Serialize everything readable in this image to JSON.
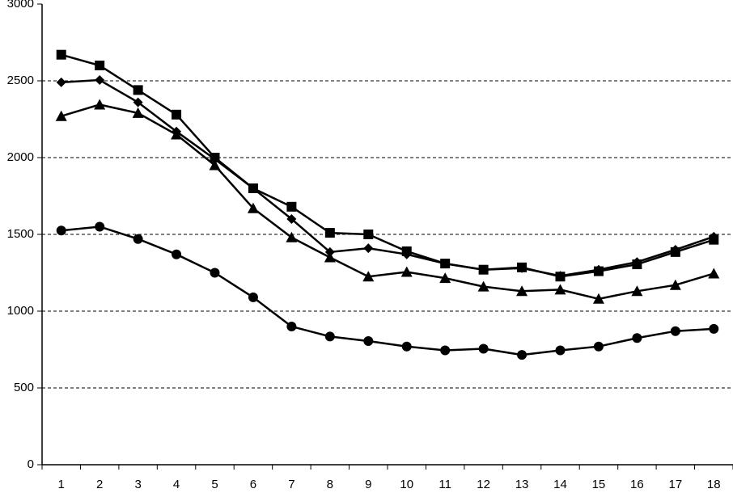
{
  "chart_data": {
    "type": "line",
    "categories": [
      "1",
      "2",
      "3",
      "4",
      "5",
      "6",
      "7",
      "8",
      "9",
      "10",
      "11",
      "12",
      "13",
      "14",
      "15",
      "16",
      "17",
      "18"
    ],
    "series": [
      {
        "color": "#000000",
        "marker": "square",
        "values": [
          2670,
          2600,
          2440,
          2280,
          2000,
          1800,
          1680,
          1510,
          1500,
          1390,
          1310,
          1270,
          1285,
          1225,
          1260,
          1305,
          1385,
          1465
        ]
      },
      {
        "color": "#000000",
        "marker": "diamond",
        "values": [
          2490,
          2505,
          2360,
          2170,
          1990,
          1800,
          1600,
          1385,
          1410,
          1370,
          1310,
          1270,
          1280,
          1230,
          1270,
          1320,
          1400,
          1485
        ]
      },
      {
        "color": "#000000",
        "marker": "triangle",
        "values": [
          2270,
          2345,
          2290,
          2150,
          1950,
          1670,
          1480,
          1350,
          1225,
          1255,
          1215,
          1160,
          1130,
          1140,
          1080,
          1130,
          1170,
          1245
        ]
      },
      {
        "color": "#000000",
        "marker": "circle",
        "values": [
          1525,
          1550,
          1470,
          1370,
          1250,
          1090,
          900,
          835,
          805,
          770,
          745,
          755,
          715,
          745,
          770,
          825,
          870,
          885
        ]
      }
    ],
    "ylim": [
      0,
      3000
    ],
    "yticks": [
      0,
      500,
      1000,
      1500,
      2000,
      2500,
      3000
    ],
    "grid": true
  }
}
